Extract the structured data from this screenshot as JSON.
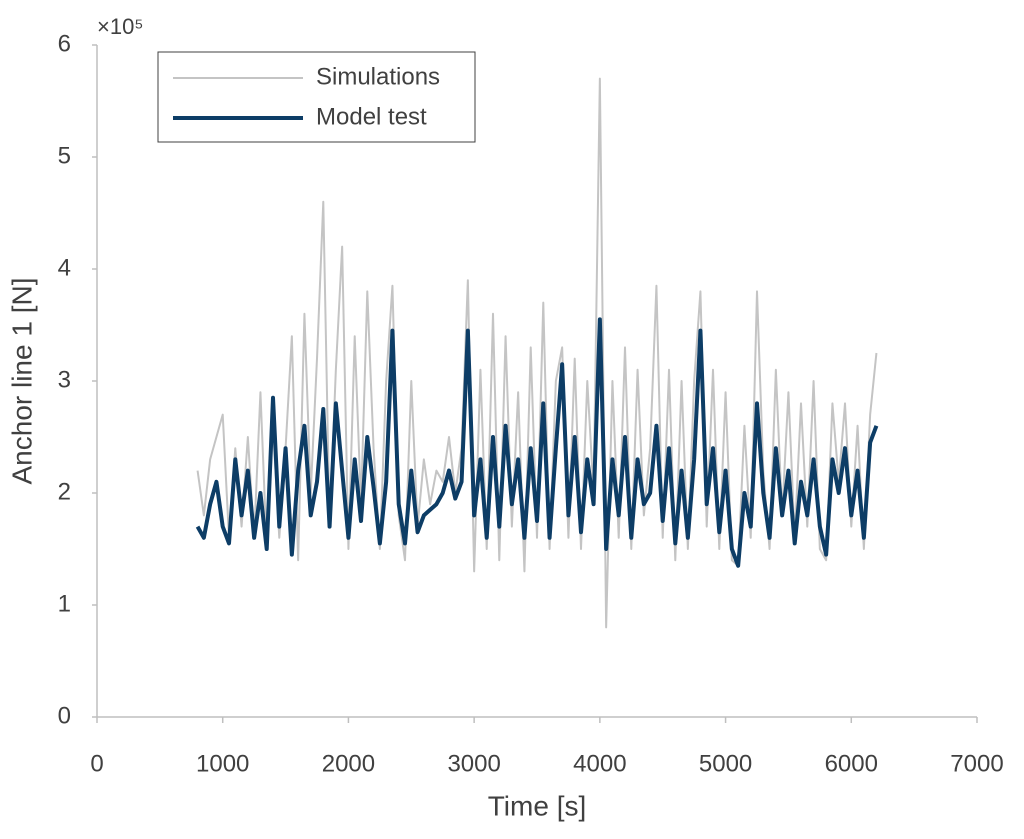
{
  "chart_data": {
    "type": "line",
    "xlabel": "Time [s]",
    "ylabel": "Anchor line 1 [N]",
    "y_multiplier": "×10⁵",
    "x": [
      800,
      850,
      900,
      950,
      1000,
      1050,
      1100,
      1150,
      1200,
      1250,
      1300,
      1350,
      1400,
      1450,
      1500,
      1550,
      1600,
      1650,
      1700,
      1750,
      1800,
      1850,
      1900,
      1950,
      2000,
      2050,
      2100,
      2150,
      2200,
      2250,
      2300,
      2350,
      2400,
      2450,
      2500,
      2550,
      2600,
      2650,
      2700,
      2750,
      2800,
      2850,
      2900,
      2950,
      3000,
      3050,
      3100,
      3150,
      3200,
      3250,
      3300,
      3350,
      3400,
      3450,
      3500,
      3550,
      3600,
      3650,
      3700,
      3750,
      3800,
      3850,
      3900,
      3950,
      4000,
      4050,
      4100,
      4150,
      4200,
      4250,
      4300,
      4350,
      4400,
      4450,
      4500,
      4550,
      4600,
      4650,
      4700,
      4750,
      4800,
      4850,
      4900,
      4950,
      5000,
      5050,
      5100,
      5150,
      5200,
      5250,
      5300,
      5350,
      5400,
      5450,
      5500,
      5550,
      5600,
      5650,
      5700,
      5750,
      5800,
      5850,
      5900,
      5950,
      6000,
      6050,
      6100,
      6150,
      6200
    ],
    "series": [
      {
        "name": "Simulations",
        "color": "#c4c4c4",
        "width": 2,
        "values": [
          2.2,
          1.8,
          2.3,
          2.5,
          2.7,
          1.6,
          2.4,
          1.7,
          2.5,
          1.6,
          2.9,
          1.5,
          2.6,
          1.6,
          2.4,
          3.4,
          1.4,
          3.6,
          2.0,
          3.2,
          4.6,
          1.7,
          3.1,
          4.2,
          1.5,
          3.4,
          1.9,
          3.8,
          2.4,
          1.5,
          3.0,
          3.85,
          1.8,
          1.4,
          3.0,
          1.7,
          2.3,
          1.9,
          2.2,
          2.1,
          2.5,
          2.0,
          2.4,
          3.9,
          1.3,
          3.1,
          1.5,
          3.6,
          1.4,
          3.4,
          1.7,
          2.9,
          1.3,
          3.3,
          1.6,
          3.7,
          1.5,
          3.0,
          3.3,
          1.6,
          3.2,
          1.5,
          3.0,
          2.0,
          5.7,
          0.8,
          3.0,
          1.6,
          3.3,
          1.5,
          3.1,
          1.8,
          2.4,
          3.85,
          1.6,
          3.1,
          1.4,
          3.0,
          1.5,
          3.0,
          3.8,
          1.7,
          3.1,
          1.5,
          2.9,
          1.4,
          1.35,
          2.6,
          1.6,
          3.8,
          2.2,
          1.5,
          3.1,
          1.8,
          2.9,
          1.6,
          2.8,
          1.7,
          3.0,
          1.5,
          1.4,
          2.8,
          2.1,
          2.8,
          1.7,
          2.6,
          1.5,
          2.7,
          3.25
        ]
      },
      {
        "name": "Model test",
        "color": "#0d3d66",
        "width": 4,
        "values": [
          1.7,
          1.6,
          1.9,
          2.1,
          1.7,
          1.55,
          2.3,
          1.8,
          2.2,
          1.6,
          2.0,
          1.5,
          2.85,
          1.7,
          2.4,
          1.45,
          2.2,
          2.6,
          1.8,
          2.1,
          2.75,
          1.7,
          2.8,
          2.2,
          1.6,
          2.3,
          1.75,
          2.5,
          2.05,
          1.55,
          2.1,
          3.45,
          1.9,
          1.55,
          2.2,
          1.65,
          1.8,
          1.85,
          1.9,
          2.0,
          2.2,
          1.95,
          2.1,
          3.45,
          1.8,
          2.3,
          1.6,
          2.5,
          1.7,
          2.6,
          1.9,
          2.3,
          1.6,
          2.4,
          1.75,
          2.8,
          1.6,
          2.4,
          3.15,
          1.8,
          2.5,
          1.65,
          2.3,
          1.9,
          3.55,
          1.5,
          2.3,
          1.8,
          2.5,
          1.6,
          2.3,
          1.9,
          2.0,
          2.6,
          1.75,
          2.4,
          1.55,
          2.2,
          1.6,
          2.3,
          3.45,
          1.9,
          2.4,
          1.65,
          2.2,
          1.5,
          1.35,
          2.0,
          1.7,
          2.8,
          2.0,
          1.6,
          2.4,
          1.8,
          2.2,
          1.55,
          2.1,
          1.8,
          2.3,
          1.7,
          1.45,
          2.3,
          2.0,
          2.4,
          1.8,
          2.2,
          1.6,
          2.45,
          2.6
        ]
      }
    ],
    "xlim": [
      0,
      7000
    ],
    "xticks": [
      0,
      1000,
      2000,
      3000,
      4000,
      5000,
      6000,
      7000
    ],
    "ylim": [
      0,
      6
    ],
    "yticks": [
      0,
      1,
      2,
      3,
      4,
      5,
      6
    ],
    "legend": "upper left"
  }
}
